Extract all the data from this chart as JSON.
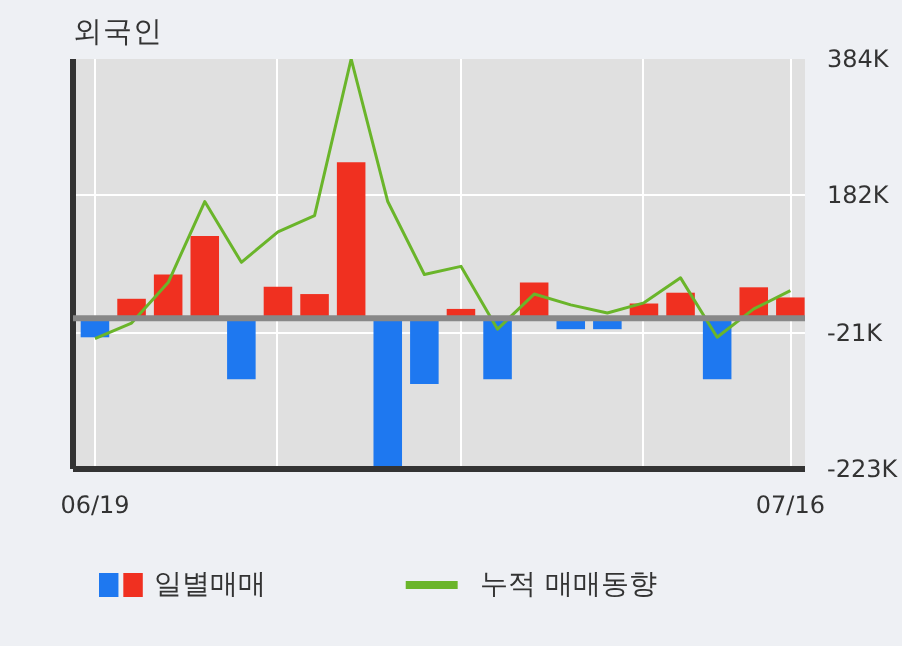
{
  "chart_data": {
    "type": "bar",
    "title": "외국인",
    "categories": [
      "06/19",
      null,
      null,
      null,
      null,
      null,
      null,
      null,
      null,
      null,
      null,
      null,
      null,
      null,
      null,
      null,
      null,
      null,
      null,
      "07/16"
    ],
    "series": [
      {
        "name": "일별매매",
        "colors": [
          "#1e78f0",
          "#f03020",
          "#f03020",
          "#f03020",
          "#1e78f0",
          "#f03020",
          "#f03020",
          "#f03020",
          "#1e78f0",
          "#1e78f0",
          "#f03020",
          "#1e78f0",
          "#f03020",
          "#1e78f0",
          "#1e78f0",
          "#f03020",
          "#f03020",
          "#1e78f0",
          "#f03020",
          "#f03020"
        ],
        "values": [
          -28,
          29,
          65,
          122,
          -90,
          47,
          36,
          231,
          -220,
          -97,
          14,
          -90,
          53,
          -16,
          -16,
          22,
          38,
          -90,
          46,
          31
        ]
      },
      {
        "name": "누적 매매동향",
        "type": "line",
        "color": "#6ab52a",
        "values": [
          -30,
          -7,
          53,
          173,
          83,
          128,
          152,
          384,
          173,
          65,
          77,
          -16,
          36,
          20,
          8,
          23,
          60,
          -28,
          14,
          41
        ]
      }
    ],
    "ylim": [
      -223,
      384
    ],
    "yticks": [
      {
        "value": -223,
        "label": "-223K"
      },
      {
        "value": -21,
        "label": "-21K"
      },
      {
        "value": 182,
        "label": "182K"
      },
      {
        "value": 384,
        "label": "384K"
      }
    ],
    "ref_lines": [
      {
        "axis": "y",
        "value": 0,
        "color": "#888888"
      }
    ],
    "grid": true,
    "legend": "bottom"
  }
}
